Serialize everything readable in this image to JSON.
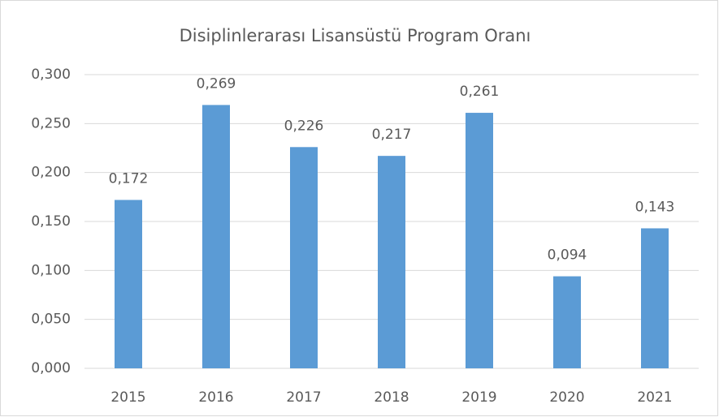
{
  "chart_data": {
    "type": "bar",
    "title": "Disiplinlerarası Lisansüstü Program Oranı",
    "categories": [
      "2015",
      "2016",
      "2017",
      "2018",
      "2019",
      "2020",
      "2021"
    ],
    "values": [
      0.172,
      0.269,
      0.226,
      0.217,
      0.261,
      0.094,
      0.143
    ],
    "value_labels": [
      "0,172",
      "0,269",
      "0,226",
      "0,217",
      "0,261",
      "0,094",
      "0,143"
    ],
    "color": "#5b9bd5",
    "ylim": [
      0,
      0.3
    ],
    "yticks": [
      {
        "value": 0,
        "label": "0,000"
      },
      {
        "value": 0.05,
        "label": "0,050"
      },
      {
        "value": 0.1,
        "label": "0,100"
      },
      {
        "value": 0.15,
        "label": "0,150"
      },
      {
        "value": 0.2,
        "label": "0,200"
      },
      {
        "value": 0.25,
        "label": "0,250"
      },
      {
        "value": 0.3,
        "label": "0,300"
      }
    ],
    "grid": true
  }
}
